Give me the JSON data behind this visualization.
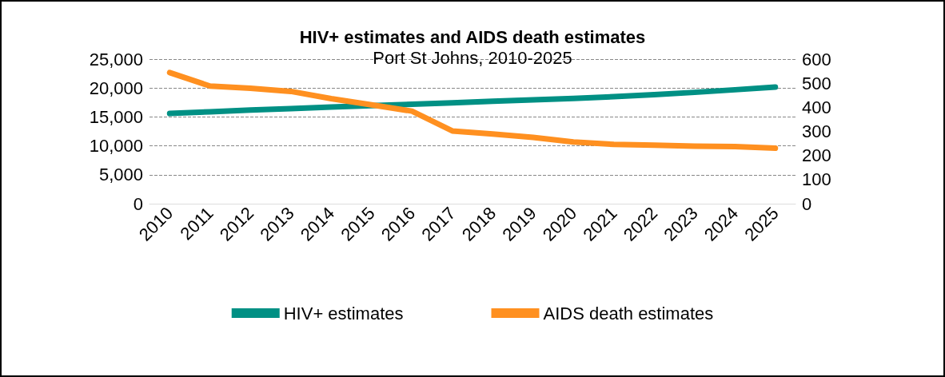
{
  "chart_data": {
    "type": "line",
    "title": "HIV+ estimates and AIDS death estimates",
    "subtitle": "Port St Johns, 2010-2025",
    "categories": [
      "2010",
      "2011",
      "2012",
      "2013",
      "2014",
      "2015",
      "2016",
      "2017",
      "2018",
      "2019",
      "2020",
      "2021",
      "2022",
      "2023",
      "2024",
      "2025"
    ],
    "series": [
      {
        "name": "HIV+ estimates",
        "color": "#009084",
        "values": [
          15600,
          15900,
          16200,
          16450,
          16700,
          16950,
          17200,
          17450,
          17700,
          17950,
          18200,
          18500,
          18850,
          19250,
          19700,
          20150
        ]
      },
      {
        "name": "AIDS death estimates",
        "color": "#ff9020",
        "axis": "y2",
        "values": [
          544,
          488,
          479,
          466,
          436,
          410,
          384,
          302,
          289,
          275,
          256,
          246,
          243,
          239,
          237,
          230
        ]
      }
    ],
    "ylim": [
      0,
      25000
    ],
    "yticks": [
      0,
      {
        "value": 5000,
        "label": "5,000"
      },
      {
        "value": 10000,
        "label": "10,000"
      },
      {
        "value": 15000,
        "label": "15,000"
      },
      {
        "value": 20000,
        "label": "20,000"
      },
      {
        "value": 25000,
        "label": "25,000"
      }
    ],
    "y2lim": [
      0,
      600
    ],
    "y2ticks": [
      0,
      100,
      200,
      300,
      400,
      500,
      600
    ],
    "grid": "y",
    "legend": "bottom",
    "marker": "none",
    "line_style": "solid"
  }
}
